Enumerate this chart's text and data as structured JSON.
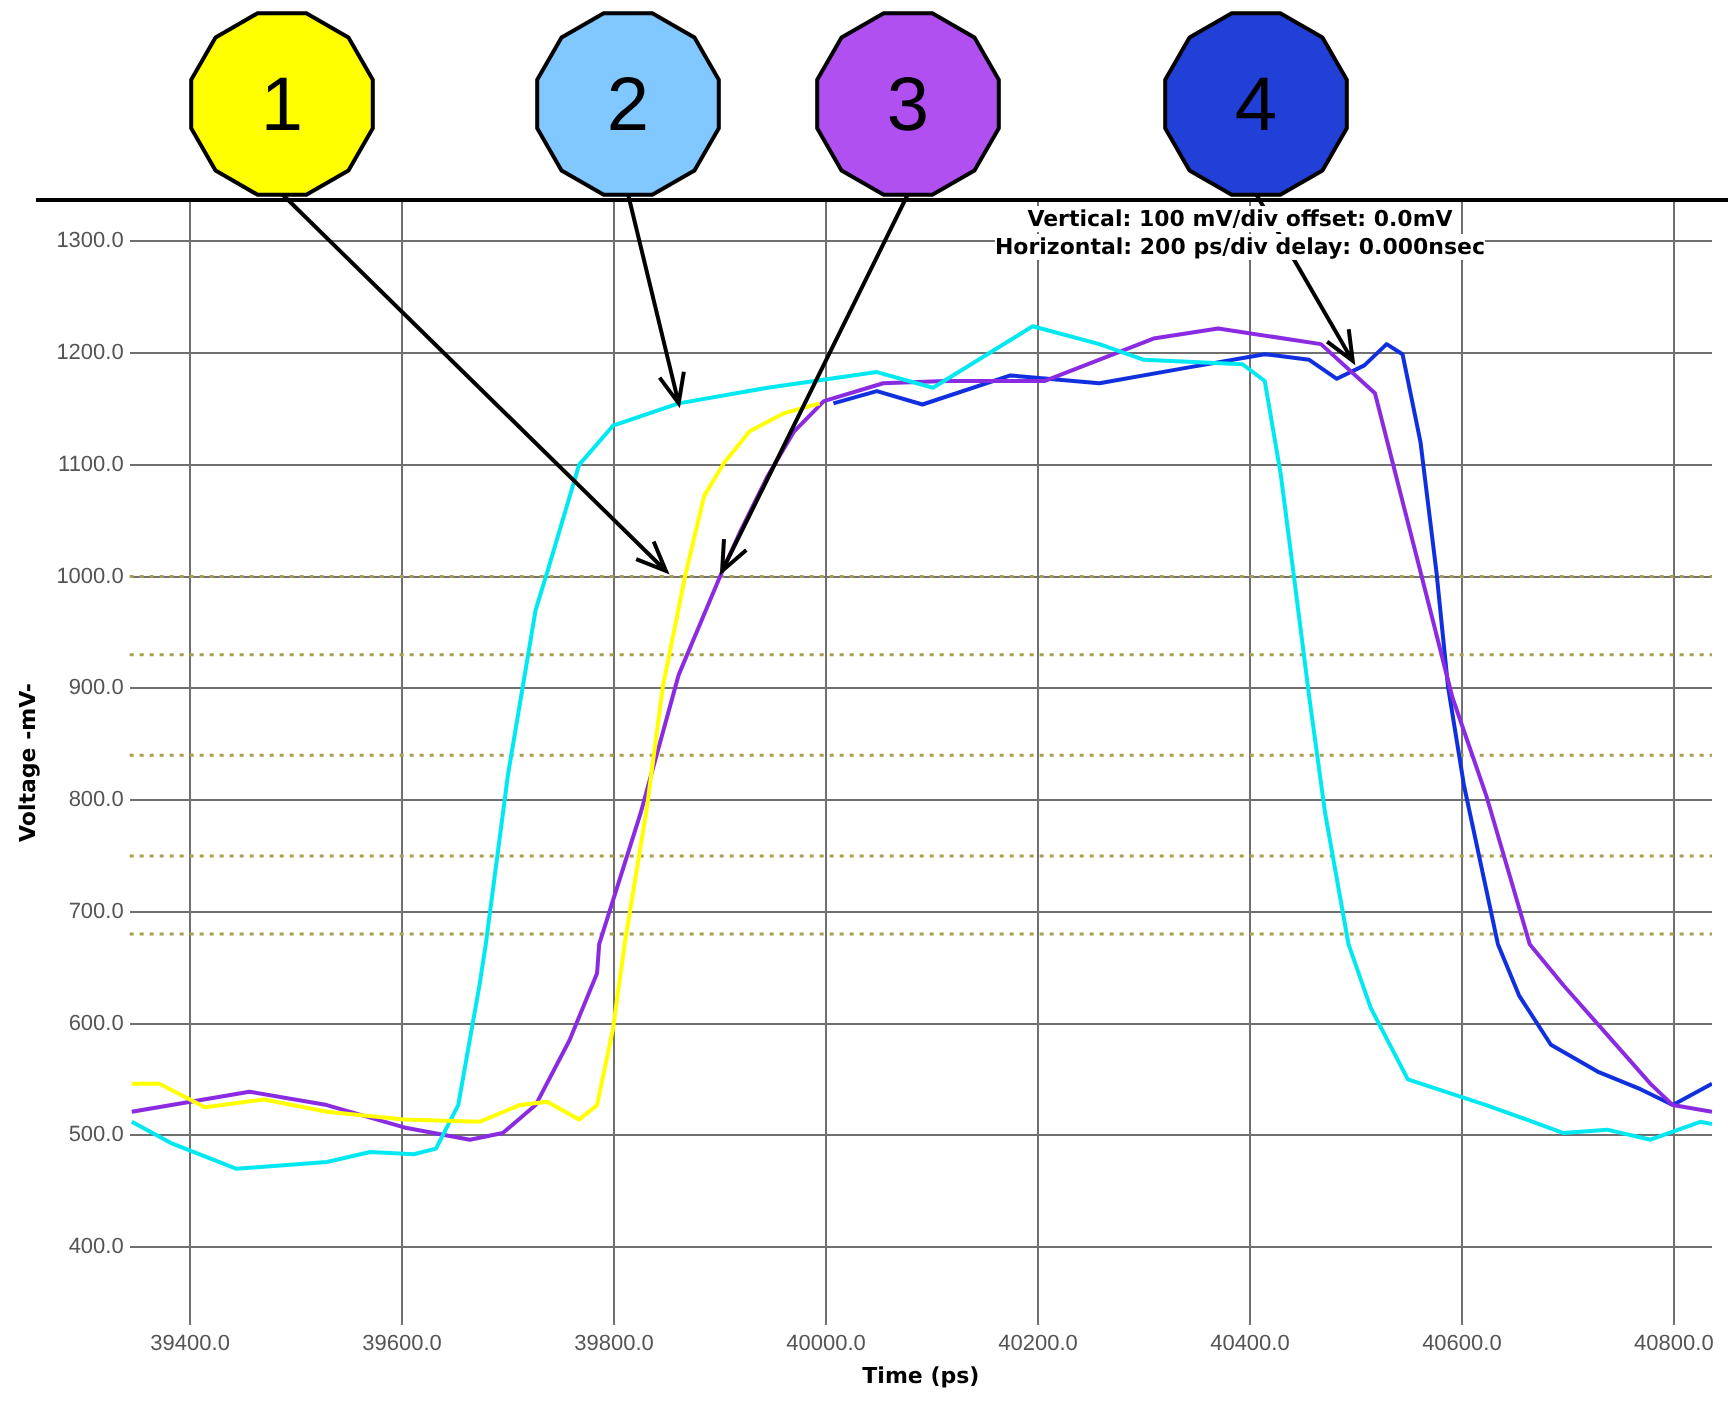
{
  "chart_data": {
    "type": "line",
    "xlabel": "Time (ps)",
    "ylabel": "Voltage -mV-",
    "xlim": [
      39343,
      40836
    ],
    "ylim": [
      330,
      1337
    ],
    "xticks": [
      {
        "value": 39400,
        "label": "39400.0"
      },
      {
        "value": 39600,
        "label": "39600.0"
      },
      {
        "value": 39800,
        "label": "39800.0"
      },
      {
        "value": 40000,
        "label": "40000.0"
      },
      {
        "value": 40200,
        "label": "40200.0"
      },
      {
        "value": 40400,
        "label": "40400.0"
      },
      {
        "value": 40600,
        "label": "40600.0"
      },
      {
        "value": 40800,
        "label": "40800.0"
      }
    ],
    "yticks": [
      {
        "value": 400,
        "label": "400.0"
      },
      {
        "value": 500,
        "label": "500.0"
      },
      {
        "value": 600,
        "label": "600.0"
      },
      {
        "value": 700,
        "label": "700.0"
      },
      {
        "value": 800,
        "label": "800.0"
      },
      {
        "value": 900,
        "label": "900.0"
      },
      {
        "value": 1000,
        "label": "1000.0"
      },
      {
        "value": 1100,
        "label": "1100.0"
      },
      {
        "value": 1200,
        "label": "1200.0"
      },
      {
        "value": 1300,
        "label": "1300.0"
      }
    ],
    "grid": true,
    "legend": false,
    "marker": "none",
    "series": [
      {
        "color": "#ffff00",
        "x": [
          39345,
          39371,
          39414,
          39470,
          39529,
          39602,
          39673,
          39711,
          39737,
          39767,
          39784,
          39799,
          39810,
          39831,
          39846,
          39867,
          39885,
          39904,
          39928,
          39960,
          39994
        ],
        "values": [
          546,
          546,
          525,
          532,
          521,
          514,
          512,
          527,
          530,
          514,
          527,
          595,
          671,
          793,
          901,
          1000,
          1072,
          1102,
          1130,
          1146,
          1155
        ]
      },
      {
        "color": "#00e8f0",
        "x": [
          39345,
          39382,
          39444,
          39529,
          39570,
          39611,
          39632,
          39653,
          39673,
          39679,
          39700,
          39726,
          39737,
          39767,
          39799,
          39861,
          39945,
          40048,
          40101,
          40195,
          40258,
          40300,
          40393,
          40414,
          40429,
          40441,
          40456,
          40471,
          40493,
          40514,
          40549,
          40623,
          40696,
          40737,
          40778,
          40825,
          40836
        ],
        "values": [
          512,
          493,
          470,
          476,
          485,
          483,
          488,
          527,
          634,
          671,
          823,
          970,
          1004,
          1100,
          1135,
          1155,
          1169,
          1183,
          1169,
          1224,
          1208,
          1194,
          1190,
          1175,
          1092,
          1004,
          892,
          788,
          671,
          614,
          550,
          527,
          502,
          505,
          496,
          512,
          510
        ]
      },
      {
        "color": "#8a2be2",
        "x": [
          39345,
          39456,
          39529,
          39602,
          39664,
          39695,
          39726,
          39758,
          39784,
          39786,
          39825,
          39861,
          39904,
          39920,
          39945,
          39970,
          39998,
          40054,
          40112,
          40206,
          40309,
          40370,
          40467,
          40518,
          40561,
          40591,
          40623,
          40664,
          40696,
          40737,
          40778,
          40799,
          40836
        ],
        "values": [
          521,
          539,
          527,
          507,
          496,
          502,
          527,
          585,
          645,
          671,
          788,
          912,
          1009,
          1042,
          1090,
          1130,
          1157,
          1173,
          1175,
          1175,
          1213,
          1222,
          1208,
          1164,
          1004,
          892,
          804,
          671,
          634,
          590,
          546,
          527,
          521
        ]
      },
      {
        "color": "#1030e0",
        "x": [
          40007,
          40048,
          40091,
          40174,
          40258,
          40341,
          40414,
          40456,
          40482,
          40508,
          40529,
          40544,
          40561,
          40576,
          40587,
          40602,
          40634,
          40654,
          40684,
          40728,
          40769,
          40799,
          40836
        ],
        "values": [
          1155,
          1166,
          1154,
          1180,
          1173,
          1187,
          1199,
          1194,
          1177,
          1189,
          1208,
          1199,
          1120,
          1004,
          901,
          813,
          671,
          625,
          581,
          557,
          541,
          527,
          546
        ]
      }
    ],
    "ref_lines": [
      {
        "axis": "y",
        "value": 1000,
        "color": "#a8a050",
        "line_style": "dotted"
      },
      {
        "axis": "y",
        "value": 930,
        "color": "#a8a050",
        "line_style": "dotted"
      },
      {
        "axis": "y",
        "value": 840,
        "color": "#a8a050",
        "line_style": "dotted"
      },
      {
        "axis": "y",
        "value": 750,
        "color": "#a8a050",
        "line_style": "dotted"
      },
      {
        "axis": "y",
        "value": 680,
        "color": "#a8a050",
        "line_style": "dotted"
      }
    ],
    "annotations": [
      "Vertical: 100 mV/div  offset: 0.0mV",
      "Horizontal: 200 ps/div  delay: 0.000nsec",
      {
        "text": "1",
        "x": 39849,
        "y": 1005
      },
      {
        "text": "2",
        "x": 39861,
        "y": 1155
      },
      {
        "text": "3",
        "x": 39902,
        "y": 1005
      },
      {
        "text": "4",
        "x": 40497,
        "y": 1193
      }
    ]
  }
}
